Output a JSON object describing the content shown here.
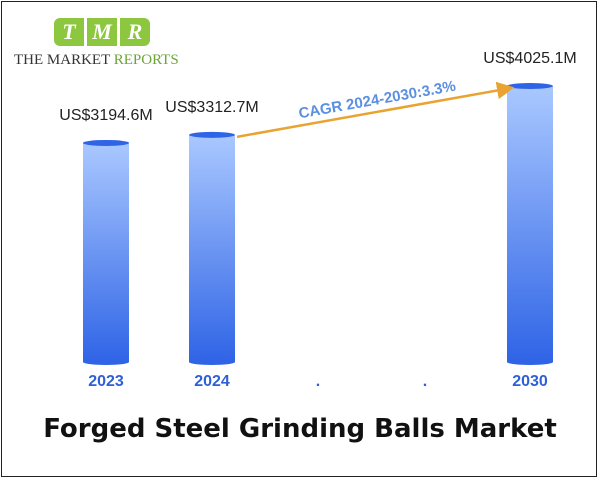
{
  "logo": {
    "letters": [
      "T",
      "M",
      "R"
    ],
    "text_main": "THE MARKET ",
    "text_accent": "REPORTS",
    "badge_color": "#8dc63f"
  },
  "chart_data": {
    "type": "bar",
    "title": "Forged Steel Grinding Balls Market",
    "categories": [
      "2023",
      "2024",
      ".",
      ".",
      "2030"
    ],
    "values": [
      3194.6,
      3312.7,
      null,
      null,
      4025.1
    ],
    "value_labels": [
      "US$3194.6M",
      "US$3312.7M",
      "",
      "",
      "US$4025.1M"
    ],
    "unit": "US$ Million",
    "annotation": "CAGR 2024-2030:3.3%",
    "grid": false,
    "legend": "none",
    "colors": {
      "bar_top": "#aac8ff",
      "bar_bottom": "#2f64e6",
      "cagr_arrow": "#e8a330",
      "cagr_text": "#5b8fe0",
      "year_text": "#2f5fd8"
    }
  }
}
